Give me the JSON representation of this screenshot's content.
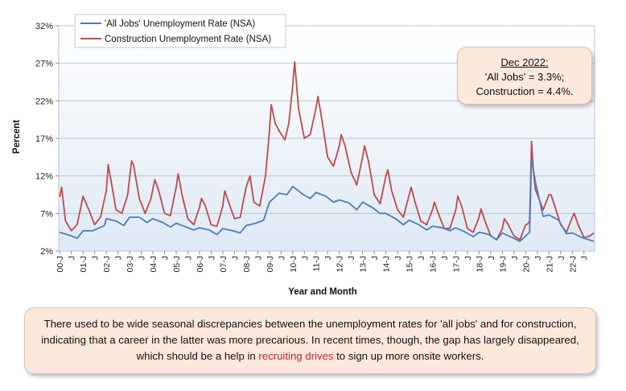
{
  "chart_data": {
    "type": "line",
    "title": "",
    "xlabel": "Year and Month",
    "ylabel": "Percent",
    "ylim": [
      2,
      32
    ],
    "yticks": [
      "2%",
      "7%",
      "12%",
      "17%",
      "22%",
      "27%",
      "32%"
    ],
    "ytick_values": [
      2,
      7,
      12,
      17,
      22,
      27,
      32
    ],
    "x_tick_labels": [
      "00-J",
      "J",
      "01-J",
      "J",
      "02-J",
      "J",
      "03-J",
      "J",
      "04-J",
      "J",
      "05-J",
      "J",
      "06-J",
      "J",
      "07-J",
      "J",
      "08-J",
      "J",
      "09-J",
      "J",
      "10-J",
      "J",
      "11-J",
      "J",
      "12-J",
      "J",
      "13-J",
      "J",
      "14-J",
      "J",
      "15-J",
      "J",
      "16-J",
      "J",
      "17-J",
      "J",
      "18-J",
      "J",
      "19-J",
      "J",
      "20-J",
      "J",
      "21-J",
      "J",
      "22-J",
      "J"
    ],
    "x_start": "2000-01",
    "x_end": "2022-12",
    "grid": "horizontal",
    "legend_position": "top-left",
    "colors": {
      "all_jobs": "#4a7ebb",
      "construction": "#be4b48"
    },
    "series": [
      {
        "name": "'All Jobs' Unemployment Rate (NSA)",
        "anchors": [
          [
            "2000-01",
            4.5
          ],
          [
            "2000-06",
            4.1
          ],
          [
            "2000-10",
            3.7
          ],
          [
            "2001-01",
            4.7
          ],
          [
            "2001-06",
            4.7
          ],
          [
            "2001-12",
            5.4
          ],
          [
            "2002-01",
            6.3
          ],
          [
            "2002-06",
            6.0
          ],
          [
            "2002-10",
            5.4
          ],
          [
            "2003-01",
            6.5
          ],
          [
            "2003-06",
            6.5
          ],
          [
            "2003-10",
            5.8
          ],
          [
            "2004-01",
            6.3
          ],
          [
            "2004-06",
            5.8
          ],
          [
            "2004-10",
            5.2
          ],
          [
            "2005-01",
            5.7
          ],
          [
            "2005-06",
            5.2
          ],
          [
            "2005-10",
            4.8
          ],
          [
            "2006-01",
            5.1
          ],
          [
            "2006-06",
            4.8
          ],
          [
            "2006-10",
            4.2
          ],
          [
            "2007-01",
            5.0
          ],
          [
            "2007-06",
            4.7
          ],
          [
            "2007-10",
            4.4
          ],
          [
            "2008-01",
            5.4
          ],
          [
            "2008-06",
            5.7
          ],
          [
            "2008-10",
            6.1
          ],
          [
            "2009-01",
            8.5
          ],
          [
            "2009-06",
            9.7
          ],
          [
            "2009-10",
            9.5
          ],
          [
            "2010-01",
            10.6
          ],
          [
            "2010-06",
            9.6
          ],
          [
            "2010-10",
            9.0
          ],
          [
            "2011-01",
            9.8
          ],
          [
            "2011-06",
            9.3
          ],
          [
            "2011-10",
            8.5
          ],
          [
            "2012-01",
            8.8
          ],
          [
            "2012-06",
            8.4
          ],
          [
            "2012-10",
            7.5
          ],
          [
            "2013-01",
            8.5
          ],
          [
            "2013-06",
            7.8
          ],
          [
            "2013-10",
            7.0
          ],
          [
            "2014-01",
            7.0
          ],
          [
            "2014-06",
            6.3
          ],
          [
            "2014-10",
            5.5
          ],
          [
            "2015-01",
            6.1
          ],
          [
            "2015-06",
            5.5
          ],
          [
            "2015-10",
            4.8
          ],
          [
            "2016-01",
            5.3
          ],
          [
            "2016-06",
            5.1
          ],
          [
            "2016-10",
            4.7
          ],
          [
            "2017-01",
            5.1
          ],
          [
            "2017-06",
            4.5
          ],
          [
            "2017-10",
            3.9
          ],
          [
            "2018-01",
            4.5
          ],
          [
            "2018-06",
            4.2
          ],
          [
            "2018-10",
            3.5
          ],
          [
            "2019-01",
            4.4
          ],
          [
            "2019-06",
            3.8
          ],
          [
            "2019-10",
            3.3
          ],
          [
            "2020-01",
            4.0
          ],
          [
            "2020-03",
            4.5
          ],
          [
            "2020-04",
            14.4
          ],
          [
            "2020-06",
            11.2
          ],
          [
            "2020-10",
            6.6
          ],
          [
            "2021-01",
            6.8
          ],
          [
            "2021-06",
            6.1
          ],
          [
            "2021-10",
            4.3
          ],
          [
            "2022-01",
            4.4
          ],
          [
            "2022-06",
            3.8
          ],
          [
            "2022-12",
            3.3
          ]
        ]
      },
      {
        "name": "Construction Unemployment Rate (NSA)",
        "anchors": [
          [
            "2000-01",
            9.2
          ],
          [
            "2000-02",
            10.5
          ],
          [
            "2000-04",
            6.0
          ],
          [
            "2000-07",
            4.7
          ],
          [
            "2000-10",
            5.5
          ],
          [
            "2001-01",
            9.3
          ],
          [
            "2001-04",
            7.5
          ],
          [
            "2001-07",
            5.5
          ],
          [
            "2001-10",
            6.5
          ],
          [
            "2002-01",
            10.0
          ],
          [
            "2002-02",
            13.5
          ],
          [
            "2002-03",
            12.0
          ],
          [
            "2002-06",
            7.5
          ],
          [
            "2002-09",
            7.0
          ],
          [
            "2002-12",
            9.5
          ],
          [
            "2003-02",
            14.0
          ],
          [
            "2003-03",
            13.5
          ],
          [
            "2003-06",
            9.0
          ],
          [
            "2003-09",
            7.0
          ],
          [
            "2003-12",
            9.0
          ],
          [
            "2004-02",
            11.5
          ],
          [
            "2004-04",
            10.0
          ],
          [
            "2004-07",
            7.0
          ],
          [
            "2004-10",
            6.7
          ],
          [
            "2005-01",
            10.5
          ],
          [
            "2005-02",
            12.3
          ],
          [
            "2005-04",
            9.5
          ],
          [
            "2005-07",
            6.3
          ],
          [
            "2005-10",
            5.5
          ],
          [
            "2006-01",
            7.8
          ],
          [
            "2006-02",
            9.0
          ],
          [
            "2006-04",
            8.0
          ],
          [
            "2006-07",
            5.5
          ],
          [
            "2006-10",
            5.3
          ],
          [
            "2007-01",
            8.0
          ],
          [
            "2007-02",
            10.0
          ],
          [
            "2007-04",
            8.5
          ],
          [
            "2007-07",
            6.3
          ],
          [
            "2007-10",
            6.5
          ],
          [
            "2008-01",
            10.5
          ],
          [
            "2008-03",
            12.0
          ],
          [
            "2008-05",
            8.5
          ],
          [
            "2008-08",
            8.0
          ],
          [
            "2008-11",
            12.0
          ],
          [
            "2009-01",
            18.0
          ],
          [
            "2009-02",
            21.5
          ],
          [
            "2009-04",
            19.0
          ],
          [
            "2009-06",
            18.0
          ],
          [
            "2009-09",
            16.8
          ],
          [
            "2009-11",
            19.0
          ],
          [
            "2010-01",
            24.0
          ],
          [
            "2010-02",
            27.2
          ],
          [
            "2010-04",
            21.0
          ],
          [
            "2010-07",
            17.0
          ],
          [
            "2010-10",
            17.5
          ],
          [
            "2011-01",
            21.0
          ],
          [
            "2011-02",
            22.6
          ],
          [
            "2011-04",
            19.5
          ],
          [
            "2011-07",
            14.5
          ],
          [
            "2011-10",
            13.3
          ],
          [
            "2012-01",
            16.0
          ],
          [
            "2012-02",
            17.5
          ],
          [
            "2012-04",
            16.0
          ],
          [
            "2012-07",
            12.5
          ],
          [
            "2012-10",
            10.8
          ],
          [
            "2013-01",
            14.5
          ],
          [
            "2013-02",
            16.0
          ],
          [
            "2013-04",
            14.0
          ],
          [
            "2013-07",
            9.5
          ],
          [
            "2013-10",
            8.3
          ],
          [
            "2014-01",
            12.0
          ],
          [
            "2014-02",
            12.8
          ],
          [
            "2014-04",
            10.0
          ],
          [
            "2014-07",
            7.5
          ],
          [
            "2014-10",
            6.5
          ],
          [
            "2015-01",
            9.5
          ],
          [
            "2015-02",
            10.5
          ],
          [
            "2015-04",
            8.5
          ],
          [
            "2015-07",
            6.0
          ],
          [
            "2015-10",
            5.5
          ],
          [
            "2016-01",
            7.5
          ],
          [
            "2016-02",
            8.5
          ],
          [
            "2016-04",
            7.0
          ],
          [
            "2016-07",
            5.0
          ],
          [
            "2016-10",
            5.0
          ],
          [
            "2017-01",
            7.5
          ],
          [
            "2017-02",
            9.3
          ],
          [
            "2017-04",
            8.0
          ],
          [
            "2017-07",
            5.0
          ],
          [
            "2017-10",
            4.5
          ],
          [
            "2018-01",
            6.5
          ],
          [
            "2018-02",
            7.6
          ],
          [
            "2018-04",
            6.0
          ],
          [
            "2018-07",
            4.0
          ],
          [
            "2018-10",
            3.5
          ],
          [
            "2019-01",
            5.0
          ],
          [
            "2019-02",
            6.3
          ],
          [
            "2019-04",
            5.5
          ],
          [
            "2019-07",
            4.0
          ],
          [
            "2019-10",
            3.5
          ],
          [
            "2020-01",
            5.5
          ],
          [
            "2020-02",
            5.6
          ],
          [
            "2020-03",
            6.0
          ],
          [
            "2020-04",
            16.6
          ],
          [
            "2020-05",
            12.5
          ],
          [
            "2020-06",
            10.2
          ],
          [
            "2020-10",
            7.5
          ],
          [
            "2021-01",
            9.5
          ],
          [
            "2021-02",
            9.5
          ],
          [
            "2021-04",
            8.0
          ],
          [
            "2021-07",
            5.5
          ],
          [
            "2021-10",
            4.5
          ],
          [
            "2022-01",
            6.5
          ],
          [
            "2022-02",
            7.0
          ],
          [
            "2022-04",
            5.5
          ],
          [
            "2022-07",
            3.8
          ],
          [
            "2022-10",
            4.0
          ],
          [
            "2022-12",
            4.4
          ]
        ]
      }
    ],
    "legend": [
      "'All Jobs' Unemployment Rate (NSA)",
      "Construction Unemployment Rate (NSA)"
    ]
  },
  "callout": {
    "title": "Dec 2022:",
    "line1": "'All Jobs' = 3.3%;",
    "line2": "Construction = 4.4%."
  },
  "note": {
    "text_before": "There used to be wide seasonal discrepancies between the unemployment rates for 'all jobs' and for construction, indicating that a career in the latter was more precarious. In recent times, though, the gap has largely disappeared, which should be a help in ",
    "link_text": "recruiting drives",
    "text_after": " to sign up more onsite workers."
  }
}
